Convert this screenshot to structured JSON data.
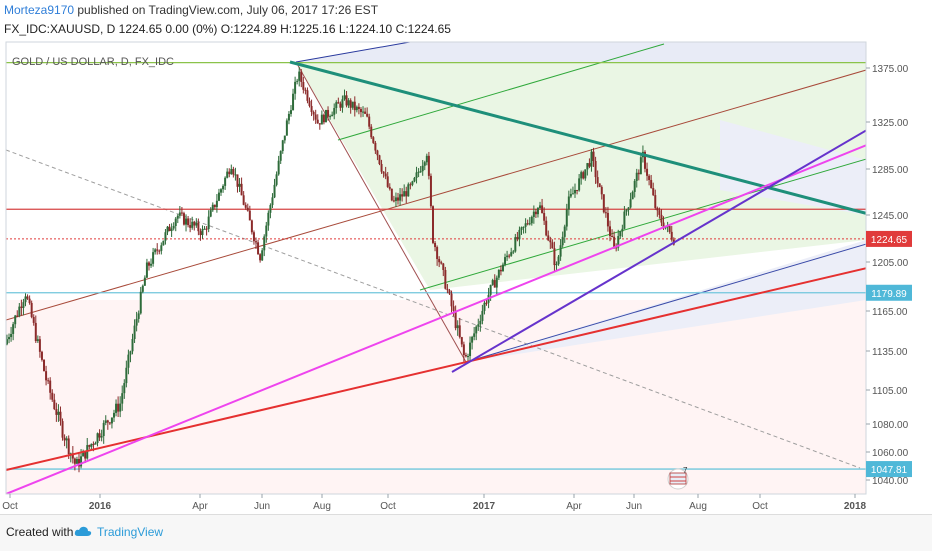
{
  "header": {
    "author": "Morteza9170",
    "published_text": " published on TradingView.com, July 06, 2017 17:26 EST",
    "ohlc_line": "FX_IDC:XAUUSD, D  1224.65 0.00 (0%) O:1224.89 H:1225.16 L:1224.10 C:1224.65"
  },
  "footer": {
    "created_with": "Created with",
    "brand": "TradingView"
  },
  "chart_data": {
    "type": "candlestick",
    "title": "GOLD / US DOLLAR, D, FX_IDC",
    "y_ticks": [
      1375.0,
      1325.0,
      1285.0,
      1245.0,
      1205.0,
      1165.0,
      1135.0,
      1105.0,
      1080.0,
      1060.0,
      1040.0
    ],
    "x_ticks": [
      "Oct",
      "2016",
      "Apr",
      "Jun",
      "Aug",
      "Oct",
      "2017",
      "Apr",
      "Jun",
      "Aug",
      "Oct",
      "2018"
    ],
    "price_labels": [
      {
        "value": "1224.65",
        "color": "#e03a3a"
      },
      {
        "value": "1179.89",
        "color": "#4fb8d8"
      },
      {
        "value": "1047.81",
        "color": "#4fb8d8"
      }
    ],
    "horizontal_levels": [
      {
        "price": 1380,
        "color": "#8bc34a"
      },
      {
        "price": 1250,
        "color": "#d64545"
      },
      {
        "price": 1224.65,
        "color": "#e03a3a",
        "style": "dotted"
      },
      {
        "price": 1179.89,
        "color": "#70c6dc"
      },
      {
        "price": 1047.81,
        "color": "#70c6dc"
      }
    ],
    "price_path": [
      [
        "2015-09-25",
        1140
      ],
      [
        "2015-10-15",
        1180
      ],
      [
        "2015-11-05",
        1110
      ],
      [
        "2015-11-20",
        1075
      ],
      [
        "2015-12-03",
        1050
      ],
      [
        "2015-12-20",
        1068
      ],
      [
        "2016-01-15",
        1095
      ],
      [
        "2016-02-10",
        1200
      ],
      [
        "2016-03-10",
        1245
      ],
      [
        "2016-04-05",
        1230
      ],
      [
        "2016-05-02",
        1290
      ],
      [
        "2016-05-30",
        1210
      ],
      [
        "2016-06-24",
        1320
      ],
      [
        "2016-07-06",
        1370
      ],
      [
        "2016-07-25",
        1325
      ],
      [
        "2016-08-20",
        1345
      ],
      [
        "2016-09-10",
        1330
      ],
      [
        "2016-10-06",
        1255
      ],
      [
        "2016-10-25",
        1270
      ],
      [
        "2016-11-08",
        1300
      ],
      [
        "2016-11-14",
        1225
      ],
      [
        "2016-11-30",
        1175
      ],
      [
        "2016-12-15",
        1128
      ],
      [
        "2017-01-05",
        1175
      ],
      [
        "2017-01-25",
        1210
      ],
      [
        "2017-02-25",
        1255
      ],
      [
        "2017-03-14",
        1200
      ],
      [
        "2017-03-25",
        1255
      ],
      [
        "2017-04-17",
        1295
      ],
      [
        "2017-05-09",
        1215
      ],
      [
        "2017-06-06",
        1296
      ],
      [
        "2017-06-20",
        1245
      ],
      [
        "2017-07-06",
        1224.65
      ]
    ]
  }
}
